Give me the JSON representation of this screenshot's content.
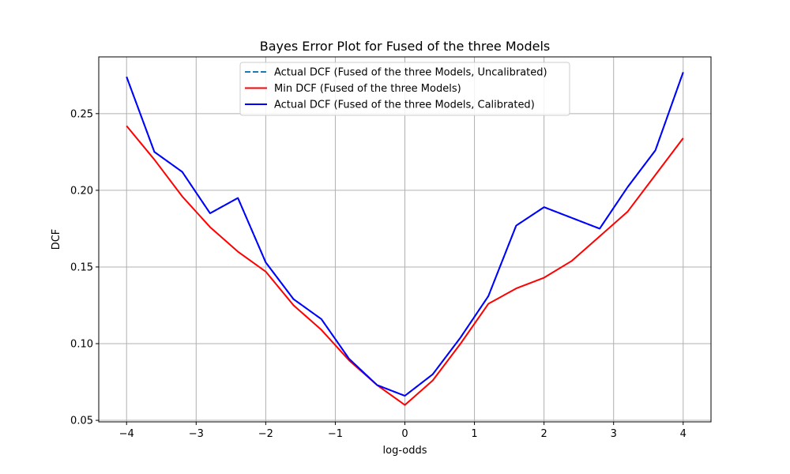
{
  "chart_data": {
    "type": "line",
    "title": "Bayes Error Plot for Fused of the three Models",
    "xlabel": "log-odds",
    "ylabel": "DCF",
    "xlim": [
      -4.4,
      4.4
    ],
    "ylim": [
      0.049,
      0.287
    ],
    "xticks": [
      -4,
      -3,
      -2,
      -1,
      0,
      1,
      2,
      3,
      4
    ],
    "xtick_labels": [
      "−4",
      "−3",
      "−2",
      "−1",
      "0",
      "1",
      "2",
      "3",
      "4"
    ],
    "yticks": [
      0.05,
      0.1,
      0.15,
      0.2,
      0.25
    ],
    "ytick_labels": [
      "0.05",
      "0.10",
      "0.15",
      "0.20",
      "0.25"
    ],
    "grid": true,
    "legend_position": "top-center",
    "x": [
      -4.0,
      -3.6,
      -3.2,
      -2.8,
      -2.4,
      -2.0,
      -1.6,
      -1.2,
      -0.8,
      -0.4,
      0.0,
      0.4,
      0.8,
      1.2,
      1.6,
      2.0,
      2.4,
      2.8,
      3.2,
      3.6,
      4.0
    ],
    "series": [
      {
        "name": "Actual DCF (Fused of the three Models, Uncalibrated)",
        "color": "#1f77b4",
        "style": "dashed",
        "values": [
          0.274,
          0.225,
          0.212,
          0.185,
          0.195,
          0.153,
          0.129,
          0.116,
          0.09,
          0.073,
          0.066,
          0.08,
          0.104,
          0.131,
          0.177,
          0.189,
          0.182,
          0.175,
          0.202,
          0.226,
          0.277
        ]
      },
      {
        "name": "Min DCF (Fused of the three Models)",
        "color": "#ff0000",
        "style": "solid",
        "values": [
          0.242,
          0.22,
          0.196,
          0.176,
          0.16,
          0.147,
          0.125,
          0.109,
          0.089,
          0.073,
          0.06,
          0.076,
          0.1,
          0.126,
          0.136,
          0.143,
          0.154,
          0.17,
          0.186,
          0.21,
          0.234
        ]
      },
      {
        "name": "Actual DCF (Fused of the three Models, Calibrated)",
        "color": "#0000ff",
        "style": "solid",
        "values": [
          0.274,
          0.225,
          0.212,
          0.185,
          0.195,
          0.153,
          0.129,
          0.116,
          0.09,
          0.073,
          0.066,
          0.08,
          0.104,
          0.131,
          0.177,
          0.189,
          0.182,
          0.175,
          0.202,
          0.226,
          0.277
        ]
      }
    ]
  }
}
